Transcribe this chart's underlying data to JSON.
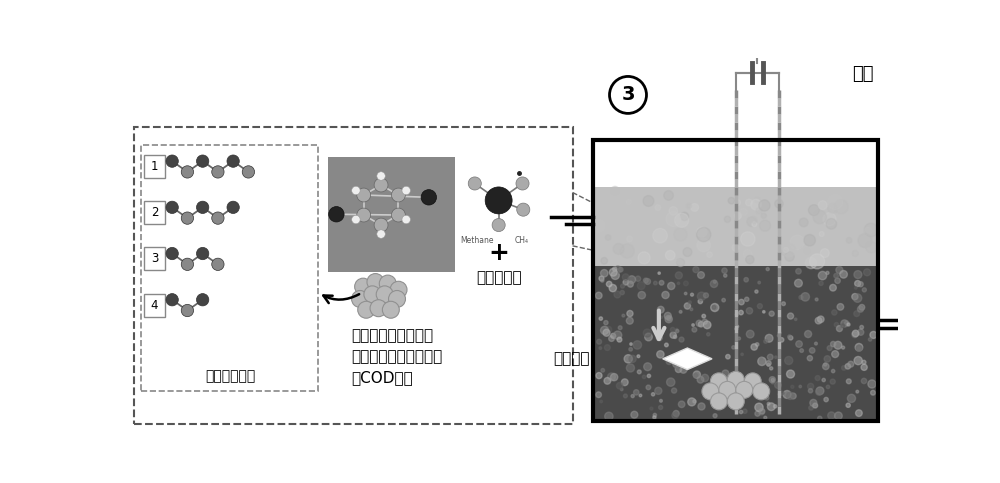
{
  "bg_color": "#ffffff",
  "label_circle3": "3",
  "label_closed_circuit": "闭路",
  "label_sludge": "污泥沉降",
  "label_other_molecules": "其他小分子",
  "label_etc": "等其他小分子",
  "label_reaction_line1": "剩余物质在污泥作用",
  "label_reaction_line2": "下继续进行后续反应，",
  "label_reaction_line3": "以COD形式",
  "molecule_labels": [
    "1",
    "2",
    "3",
    "4"
  ]
}
